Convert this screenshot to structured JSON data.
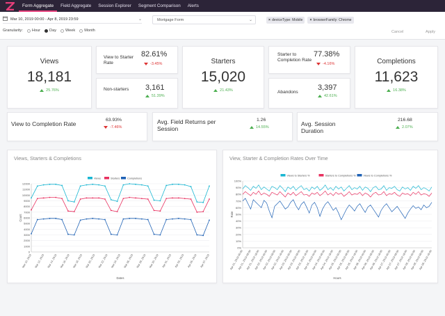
{
  "nav": {
    "tabs": [
      "Form Aggregate",
      "Field Aggregate",
      "Session Explorer",
      "Segment Comparison",
      "Alerts"
    ],
    "active": "Form Aggregate"
  },
  "filters": {
    "date_range": "Mar 10, 2019 00:00 - Apr 8, 2019 23:59",
    "form": "Mortgage Form",
    "chips": [
      "deviceType: Mobile",
      "browserFamily: Chrome"
    ],
    "granularity_label": "Granularity:",
    "granularity_options": [
      "Hour",
      "Day",
      "Week",
      "Month"
    ],
    "granularity_selected": "Day",
    "cancel_label": "Cancel",
    "apply_label": "Apply"
  },
  "kpis": {
    "views": {
      "title": "Views",
      "value": "18,181",
      "delta": "25.76%"
    },
    "view_to_starter": {
      "title": "View to Starter Rate",
      "value": "82.61%",
      "delta": "-3.45%"
    },
    "non_starters": {
      "title": "Non-starters",
      "value": "3,161",
      "delta": "51.39%"
    },
    "starters": {
      "title": "Starters",
      "value": "15,020",
      "delta": "21.43%"
    },
    "starter_to_completion": {
      "title": "Starter to Completion Rate",
      "value": "77.38%",
      "delta": "-4.16%"
    },
    "abandons": {
      "title": "Abandons",
      "value": "3,397",
      "delta": "42.61%"
    },
    "completions": {
      "title": "Completions",
      "value": "11,623",
      "delta": "16.38%"
    },
    "view_to_completion": {
      "title": "View to Completion Rate",
      "value": "63.93%",
      "delta": "-7.46%"
    },
    "avg_field_returns": {
      "title": "Avg. Field Returns per Session",
      "value": "1.26",
      "delta": "14.55%"
    },
    "avg_session_duration": {
      "title": "Avg. Session Duration",
      "value": "216.68",
      "delta": "2.07%"
    }
  },
  "colors": {
    "views": "#19b6d2",
    "starters": "#e8305f",
    "completions": "#1f62b5",
    "accent": "#e53e7a",
    "nav_bg": "#2c2438"
  },
  "chart_data": [
    {
      "type": "line",
      "title": "Views, Starters & Completions",
      "xlabel": "Dates",
      "ylabel": "Count",
      "ylim": [
        0,
        12000
      ],
      "yticks": [
        "0",
        "1000",
        "2000",
        "3000",
        "4000",
        "5000",
        "6000",
        "7000",
        "8000",
        "9000",
        "10000",
        "11000",
        "12000"
      ],
      "x_tick_labels": [
        "Mar 10, 2019",
        "Mar 12, 2019",
        "Mar 14, 2019",
        "Mar 16, 2019",
        "Mar 18, 2019",
        "Mar 20, 2019",
        "Mar 22, 2019",
        "Mar 24, 2019",
        "Mar 26, 2019",
        "Mar 28, 2019",
        "Mar 30, 2019",
        "Apr 01, 2019",
        "Apr 03, 2019",
        "Apr 05, 2019",
        "Apr 07, 2019"
      ],
      "series": [
        {
          "name": "Views",
          "values": [
            9500,
            11600,
            11800,
            11900,
            11900,
            11700,
            9000,
            8800,
            11600,
            11800,
            11900,
            11800,
            11600,
            9200,
            8900,
            11800,
            12000,
            11900,
            11800,
            11600,
            9100,
            9000,
            11700,
            11900,
            11900,
            11800,
            11500,
            8800,
            8700,
            11600
          ]
        },
        {
          "name": "Starters",
          "values": [
            7400,
            9400,
            9500,
            9600,
            9600,
            9400,
            7200,
            7100,
            9300,
            9500,
            9500,
            9500,
            9300,
            7300,
            7100,
            9400,
            9600,
            9500,
            9400,
            9300,
            7300,
            7200,
            9400,
            9500,
            9500,
            9400,
            9300,
            7000,
            7100,
            9300
          ]
        },
        {
          "name": "Completions",
          "values": [
            3200,
            5700,
            5800,
            5900,
            5900,
            5700,
            3100,
            3000,
            5600,
            5800,
            5900,
            5800,
            5700,
            3100,
            3000,
            5800,
            5900,
            5900,
            5800,
            5700,
            3100,
            3000,
            5700,
            5800,
            5900,
            5800,
            5700,
            3000,
            2900,
            5600
          ]
        }
      ]
    },
    {
      "type": "line",
      "title": "View, Starter & Completion Rates Over Time",
      "xlabel": "Hours",
      "ylabel": "Rate",
      "ylim": [
        0,
        100
      ],
      "yticks": [
        "0%",
        "10%",
        "20%",
        "30%",
        "40%",
        "50%",
        "60%",
        "70%",
        "80%",
        "90%",
        "100%"
      ],
      "x_tick_labels": [
        "Apr 01, 2019 00:00",
        "Apr 01, 2019 08:00",
        "Apr 01, 2019 16:00",
        "Apr 02, 2019 00:00",
        "Apr 02, 2019 08:00",
        "Apr 02, 2019 16:00",
        "Apr 03, 2019 00:00",
        "Apr 03, 2019 08:00",
        "Apr 03, 2019 16:00",
        "Apr 04, 2019 00:00",
        "Apr 04, 2019 08:00",
        "Apr 04, 2019 16:00",
        "Apr 05, 2019 00:00",
        "Apr 05, 2019 08:00",
        "Apr 05, 2019 16:00",
        "Apr 06, 2019 00:00",
        "Apr 06, 2019 08:00",
        "Apr 06, 2019 16:00",
        "Apr 07, 2019 00:00",
        "Apr 07, 2019 08:00",
        "Apr 07, 2019 16:00",
        "Apr 08, 2019 00:00",
        "Apr 08, 2019 08:00",
        "Apr 08, 2019 16:00"
      ],
      "series": [
        {
          "name": "Views to Starters %",
          "values": [
            88,
            93,
            90,
            86,
            92,
            89,
            94,
            87,
            91,
            88,
            85,
            92,
            90,
            87,
            93,
            89,
            84,
            91,
            88,
            92,
            86,
            90,
            93,
            87,
            89,
            85,
            91,
            88,
            92,
            86,
            89,
            94,
            87,
            90,
            86,
            92,
            88,
            91,
            85,
            89,
            93,
            87,
            90,
            88,
            92,
            86,
            91,
            89,
            84,
            90,
            92,
            87,
            88,
            93,
            86,
            90,
            89,
            92,
            87,
            85,
            91,
            88,
            90,
            86,
            92,
            89,
            93,
            87,
            90,
            88,
            85,
            91
          ]
        },
        {
          "name": "Starters to Completions %",
          "values": [
            80,
            84,
            81,
            78,
            83,
            80,
            85,
            79,
            82,
            80,
            77,
            83,
            81,
            79,
            84,
            80,
            76,
            82,
            79,
            83,
            78,
            81,
            84,
            79,
            80,
            77,
            82,
            80,
            83,
            78,
            81,
            85,
            79,
            82,
            78,
            83,
            80,
            82,
            77,
            80,
            84,
            79,
            81,
            80,
            83,
            78,
            82,
            80,
            76,
            81,
            83,
            79,
            80,
            84,
            78,
            81,
            80,
            83,
            79,
            77,
            82,
            80,
            81,
            78,
            83,
            80,
            84,
            79,
            81,
            80,
            77,
            82
          ]
        },
        {
          "name": "Views to Completions %",
          "values": [
            70,
            74,
            66,
            58,
            72,
            68,
            64,
            60,
            71,
            67,
            55,
            45,
            62,
            66,
            70,
            64,
            58,
            61,
            68,
            72,
            63,
            57,
            65,
            69,
            61,
            52,
            64,
            68,
            60,
            47,
            58,
            65,
            69,
            63,
            56,
            60,
            52,
            42,
            50,
            58,
            64,
            60,
            55,
            62,
            66,
            59,
            53,
            61,
            64,
            58,
            52,
            46,
            56,
            62,
            66,
            60,
            54,
            58,
            62,
            56,
            50,
            44,
            52,
            58,
            63,
            59,
            61,
            57,
            64,
            60,
            62,
            68
          ]
        }
      ]
    }
  ]
}
